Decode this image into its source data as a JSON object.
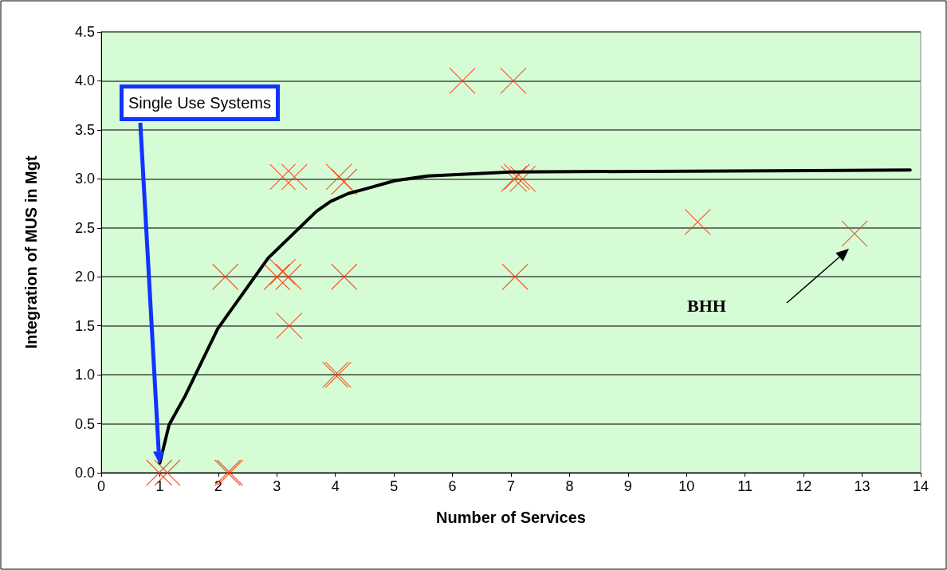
{
  "chart_data": {
    "type": "scatter",
    "xlabel": "Number of Services",
    "ylabel": "Integration of MUS in Mgt",
    "xlim": [
      0,
      14
    ],
    "xticks": [
      0,
      1,
      2,
      3,
      4,
      5,
      6,
      7,
      8,
      9,
      10,
      11,
      12,
      13,
      14
    ],
    "ylim": [
      0,
      4.5
    ],
    "yticks": [
      {
        "value": 0,
        "label": "0.0"
      },
      {
        "value": 0.5,
        "label": "0.5"
      },
      {
        "value": 1,
        "label": "1.0"
      },
      {
        "value": 1.5,
        "label": "1.5"
      },
      {
        "value": 2,
        "label": "2.0"
      },
      {
        "value": 2.5,
        "label": "2.5"
      },
      {
        "value": 3,
        "label": "3.0"
      },
      {
        "value": 3.5,
        "label": "3.5"
      },
      {
        "value": 4,
        "label": "4.0"
      },
      {
        "value": 4.5,
        "label": "4.5"
      }
    ],
    "grid": "y",
    "marker": "cross",
    "series": [
      {
        "color": "#ff3300",
        "x": [
          0.99,
          1.13,
          2.16,
          2.2,
          2.12,
          3.21,
          3.0,
          3.1,
          3.2,
          3.1,
          3.3,
          4.06,
          4.15,
          4.0,
          4.05,
          4.15,
          6.17,
          7.04,
          7.05,
          7.1,
          7.2,
          7.07,
          10.19,
          12.87
        ],
        "values": [
          0,
          0,
          0,
          0,
          2,
          1.5,
          2,
          2.05,
          2,
          3.02,
          3.02,
          3.02,
          2.97,
          1,
          1,
          2,
          4,
          4,
          3,
          3.02,
          3,
          2,
          2.56,
          2.44
        ]
      },
      {
        "type": "line",
        "color": "#000000",
        "marker": "none",
        "x": [
          1.0,
          1.16,
          1.43,
          1.99,
          2.85,
          3.68,
          3.92,
          4.22,
          4.53,
          5.01,
          5.58,
          6.99,
          13.82
        ],
        "values": [
          0.1,
          0.49,
          0.78,
          1.47,
          2.19,
          2.67,
          2.77,
          2.85,
          2.9,
          2.98,
          3.03,
          3.07,
          3.09
        ]
      }
    ],
    "annotations": [
      "Single Use Systems",
      "BHH"
    ]
  }
}
